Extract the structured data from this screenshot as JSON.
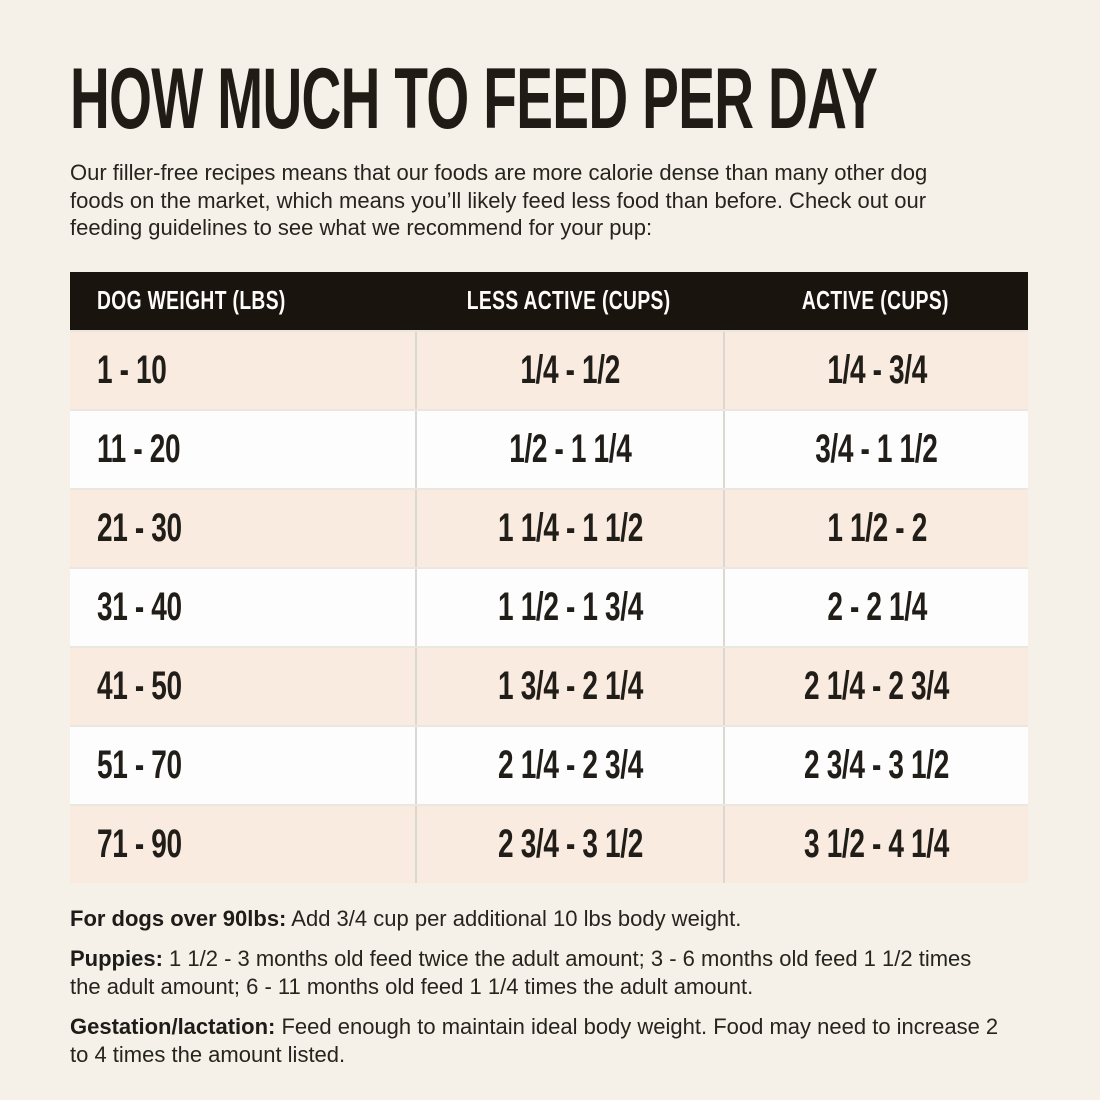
{
  "page": {
    "title": "HOW MUCH TO FEED PER DAY",
    "intro": "Our filler-free recipes means that our foods are more calorie dense than many other dog foods on the market, which means you’ll likely feed less food than before. Check out our feeding guidelines to see what we recommend for your pup:"
  },
  "table": {
    "columns": [
      "DOG WEIGHT (LBS)",
      "LESS ACTIVE (CUPS)",
      "ACTIVE (CUPS)"
    ],
    "rows": [
      {
        "weight": "1 - 10",
        "less_active": "1/4 - 1/2",
        "active": "1/4 - 3/4"
      },
      {
        "weight": "11 - 20",
        "less_active": "1/2 - 1 1/4",
        "active": "3/4 - 1 1/2"
      },
      {
        "weight": "21 - 30",
        "less_active": "1 1/4 - 1 1/2",
        "active": "1 1/2 - 2"
      },
      {
        "weight": "31 - 40",
        "less_active": "1 1/2 - 1 3/4",
        "active": "2 - 2 1/4"
      },
      {
        "weight": "41 - 50",
        "less_active": "1 3/4 - 2 1/4",
        "active": "2 1/4 - 2 3/4"
      },
      {
        "weight": "51 - 70",
        "less_active": "2 1/4 - 2 3/4",
        "active": "2 3/4 - 3 1/2"
      },
      {
        "weight": "71 - 90",
        "less_active": "2 3/4 - 3 1/2",
        "active": "3 1/2 - 4 1/4"
      }
    ]
  },
  "notes": [
    {
      "label": "For dogs over 90lbs:",
      "text": "Add 3/4 cup per additional 10 lbs body weight."
    },
    {
      "label": "Puppies:",
      "text": "1 1/2 - 3 months old feed twice the adult amount; 3 - 6 months old feed 1 1/2 times the adult amount; 6 - 11 months old feed 1 1/4 times the adult amount."
    },
    {
      "label": "Gestation/lactation:",
      "text": "Feed enough to maintain ideal body weight. Food may need to increase 2 to 4 times the amount listed."
    }
  ],
  "colors": {
    "background": "#f5f1e8",
    "table_header_bg": "#1a140f",
    "table_header_text": "#fdfcfa",
    "row_cream_bg": "#f9ebe0",
    "row_white_bg": "#fdfdfd",
    "text": "#26241f"
  }
}
